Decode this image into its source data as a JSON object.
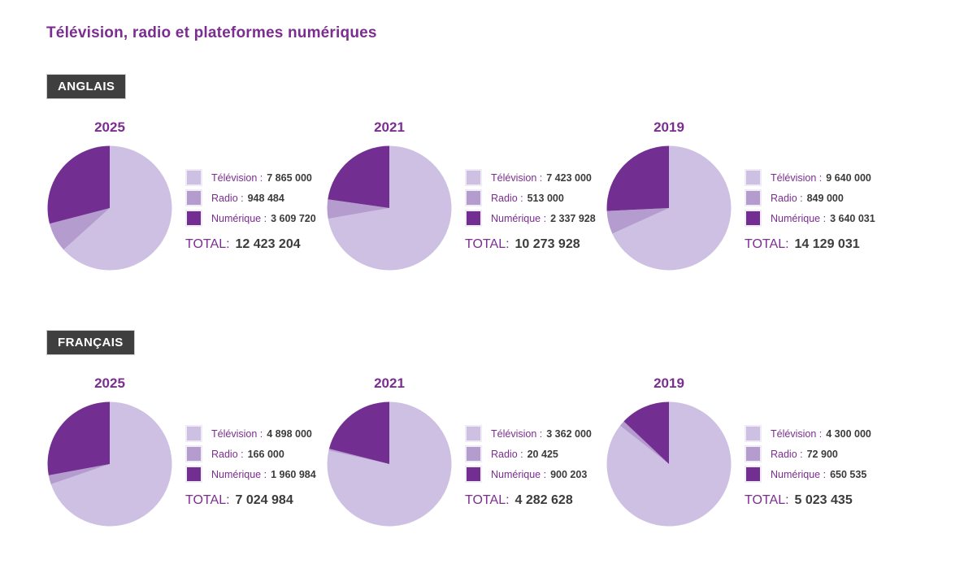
{
  "page_title": "Télévision, radio et plateformes numériques",
  "colors": {
    "accent_purple": "#7b2d90",
    "value_text": "#3b3b3b",
    "badge_bg": "#3f3f3f",
    "badge_text": "#ffffff",
    "slices": [
      "#cdc0e2",
      "#b49cce",
      "#722f91"
    ]
  },
  "chart_data": [
    {
      "type": "pie",
      "section": "ANGLAIS",
      "title": "2025",
      "categories": [
        "Télévision",
        "Radio",
        "Numérique"
      ],
      "values": [
        7865000,
        948484,
        3609720
      ],
      "total": 12423204,
      "colors": [
        "#cdc0e2",
        "#b49cce",
        "#722f91"
      ],
      "start_angle_deg": 0,
      "direction": "clockwise",
      "legend_position": "right"
    },
    {
      "type": "pie",
      "section": "ANGLAIS",
      "title": "2021",
      "categories": [
        "Télévision",
        "Radio",
        "Numérique"
      ],
      "values": [
        7423000,
        513000,
        2337928
      ],
      "total": 10273928,
      "colors": [
        "#cdc0e2",
        "#b49cce",
        "#722f91"
      ],
      "start_angle_deg": 0,
      "direction": "clockwise",
      "legend_position": "right"
    },
    {
      "type": "pie",
      "section": "ANGLAIS",
      "title": "2019",
      "categories": [
        "Télévision",
        "Radio",
        "Numérique"
      ],
      "values": [
        9640000,
        849000,
        3640031
      ],
      "total": 14129031,
      "colors": [
        "#cdc0e2",
        "#b49cce",
        "#722f91"
      ],
      "start_angle_deg": 0,
      "direction": "clockwise",
      "legend_position": "right"
    },
    {
      "type": "pie",
      "section": "FRANÇAIS",
      "title": "2025",
      "categories": [
        "Télévision",
        "Radio",
        "Numérique"
      ],
      "values": [
        4898000,
        166000,
        1960984
      ],
      "total": 7024984,
      "colors": [
        "#cdc0e2",
        "#b49cce",
        "#722f91"
      ],
      "start_angle_deg": 0,
      "direction": "clockwise",
      "legend_position": "right"
    },
    {
      "type": "pie",
      "section": "FRANÇAIS",
      "title": "2021",
      "categories": [
        "Télévision",
        "Radio",
        "Numérique"
      ],
      "values": [
        3362000,
        20425,
        900203
      ],
      "total": 4282628,
      "colors": [
        "#cdc0e2",
        "#b49cce",
        "#722f91"
      ],
      "start_angle_deg": 0,
      "direction": "clockwise",
      "legend_position": "right"
    },
    {
      "type": "pie",
      "section": "FRANÇAIS",
      "title": "2019",
      "categories": [
        "Télévision",
        "Radio",
        "Numérique"
      ],
      "values": [
        4300000,
        72900,
        650535
      ],
      "total": 5023435,
      "colors": [
        "#cdc0e2",
        "#b49cce",
        "#722f91"
      ],
      "start_angle_deg": 0,
      "direction": "clockwise",
      "legend_position": "right"
    }
  ],
  "sections": [
    {
      "label": "ANGLAIS",
      "groups": [
        {
          "year": "2025",
          "chart_index": 0,
          "legend": [
            {
              "label": "Télévision :",
              "value": "7 865 000"
            },
            {
              "label": "Radio :",
              "value": "948 484"
            },
            {
              "label": "Numérique :",
              "value": "3 609 720"
            }
          ],
          "total_label": "TOTAL:",
          "total_value": "12 423 204"
        },
        {
          "year": "2021",
          "chart_index": 1,
          "legend": [
            {
              "label": "Télévision :",
              "value": "7 423 000"
            },
            {
              "label": "Radio :",
              "value": "513 000"
            },
            {
              "label": "Numérique :",
              "value": "2 337 928"
            }
          ],
          "total_label": "TOTAL:",
          "total_value": "10 273 928"
        },
        {
          "year": "2019",
          "chart_index": 2,
          "legend": [
            {
              "label": "Télévision :",
              "value": "9 640 000"
            },
            {
              "label": "Radio :",
              "value": "849 000"
            },
            {
              "label": "Numérique :",
              "value": "3 640 031"
            }
          ],
          "total_label": "TOTAL:",
          "total_value": "14 129 031"
        }
      ]
    },
    {
      "label": "FRANÇAIS",
      "groups": [
        {
          "year": "2025",
          "chart_index": 3,
          "legend": [
            {
              "label": "Télévision :",
              "value": "4 898 000"
            },
            {
              "label": "Radio :",
              "value": "166 000"
            },
            {
              "label": "Numérique :",
              "value": "1 960 984"
            }
          ],
          "total_label": "TOTAL:",
          "total_value": "7 024 984"
        },
        {
          "year": "2021",
          "chart_index": 4,
          "legend": [
            {
              "label": "Télévision :",
              "value": "3 362 000"
            },
            {
              "label": "Radio :",
              "value": "20 425"
            },
            {
              "label": "Numérique :",
              "value": "900 203"
            }
          ],
          "total_label": "TOTAL:",
          "total_value": "4 282 628"
        },
        {
          "year": "2019",
          "chart_index": 5,
          "legend": [
            {
              "label": "Télévision :",
              "value": "4 300 000"
            },
            {
              "label": "Radio :",
              "value": "72 900"
            },
            {
              "label": "Numérique :",
              "value": "650 535"
            }
          ],
          "total_label": "TOTAL:",
          "total_value": "5 023 435"
        }
      ]
    }
  ]
}
